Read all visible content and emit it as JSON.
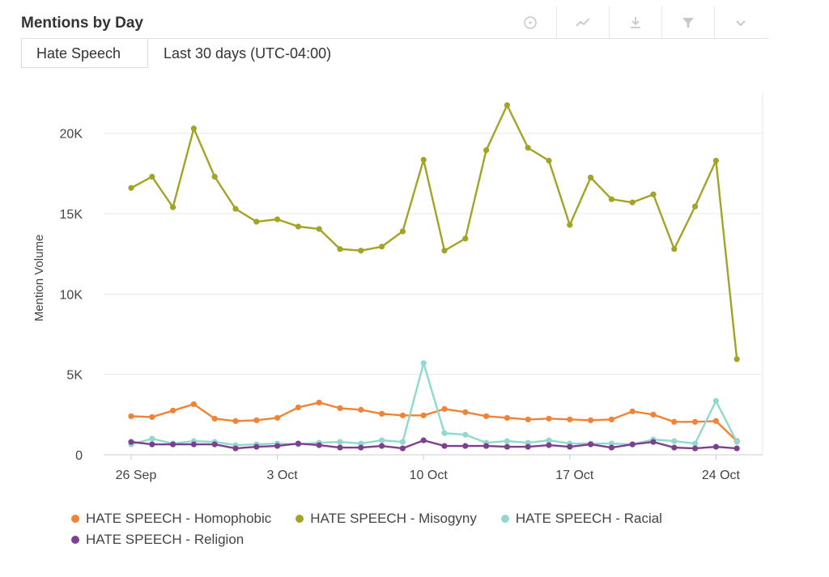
{
  "panel": {
    "title": "Mentions by Day"
  },
  "tabs": {
    "active": "Hate Speech",
    "range": "Last 30 days (UTC-04:00)"
  },
  "toolbar": {
    "icons": [
      "info-icon",
      "line-chart-icon",
      "download-icon",
      "filter-icon",
      "chevron-down-icon"
    ]
  },
  "colors": {
    "homophobic": "#f08335",
    "misogyny": "#a3a325",
    "racial": "#8fd9cf",
    "religion": "#7e3f8f",
    "grid": "#e8e8e8",
    "axis_text": "#444444"
  },
  "chart_data": {
    "type": "line",
    "ylabel": "Mention Volume",
    "xlabel": "",
    "ylim": [
      0,
      22000
    ],
    "yticks": [
      0,
      5000,
      10000,
      15000,
      20000
    ],
    "ytick_labels": [
      "0",
      "5K",
      "10K",
      "15K",
      "20K"
    ],
    "xtick_labels": [
      {
        "label": "26 Sep",
        "day": 0
      },
      {
        "label": "3 Oct",
        "day": 7
      },
      {
        "label": "10 Oct",
        "day": 14
      },
      {
        "label": "17 Oct",
        "day": 21
      },
      {
        "label": "24 Oct",
        "day": 28
      }
    ],
    "x": [
      "25 Sep",
      "26 Sep",
      "27 Sep",
      "28 Sep",
      "29 Sep",
      "30 Sep",
      "1 Oct",
      "2 Oct",
      "3 Oct",
      "4 Oct",
      "5 Oct",
      "6 Oct",
      "7 Oct",
      "8 Oct",
      "9 Oct",
      "10 Oct",
      "11 Oct",
      "12 Oct",
      "13 Oct",
      "14 Oct",
      "15 Oct",
      "16 Oct",
      "17 Oct",
      "18 Oct",
      "19 Oct",
      "20 Oct",
      "21 Oct",
      "22 Oct",
      "23 Oct",
      "24 Oct"
    ],
    "grid": true,
    "legend_position": "bottom",
    "series": [
      {
        "name": "HATE SPEECH - Homophobic",
        "color_key": "homophobic",
        "values": [
          2400,
          2350,
          2750,
          3150,
          2250,
          2100,
          2150,
          2300,
          2950,
          3250,
          2900,
          2800,
          2550,
          2450,
          2450,
          2850,
          2650,
          2400,
          2300,
          2200,
          2250,
          2200,
          2150,
          2200,
          2700,
          2500,
          2050,
          2050,
          2100,
          850
        ]
      },
      {
        "name": "HATE SPEECH - Misogyny",
        "color_key": "misogyny",
        "values": [
          16600,
          17300,
          15400,
          20300,
          17300,
          15300,
          14500,
          14650,
          14200,
          14050,
          12800,
          12700,
          12950,
          13900,
          18350,
          12700,
          13450,
          18950,
          21750,
          19100,
          18300,
          14300,
          17250,
          15900,
          15700,
          16200,
          12800,
          15450,
          18300,
          5950
        ]
      },
      {
        "name": "HATE SPEECH - Racial",
        "color_key": "racial",
        "values": [
          650,
          1000,
          700,
          850,
          800,
          600,
          650,
          700,
          650,
          750,
          800,
          700,
          900,
          800,
          5700,
          1350,
          1250,
          750,
          850,
          750,
          900,
          700,
          700,
          700,
          650,
          950,
          850,
          700,
          3350,
          800
        ]
      },
      {
        "name": "HATE SPEECH - Religion",
        "color_key": "religion",
        "values": [
          800,
          650,
          650,
          650,
          650,
          400,
          500,
          550,
          700,
          600,
          450,
          450,
          550,
          400,
          900,
          550,
          550,
          550,
          500,
          500,
          600,
          500,
          650,
          450,
          650,
          800,
          450,
          400,
          500,
          400
        ]
      }
    ]
  }
}
